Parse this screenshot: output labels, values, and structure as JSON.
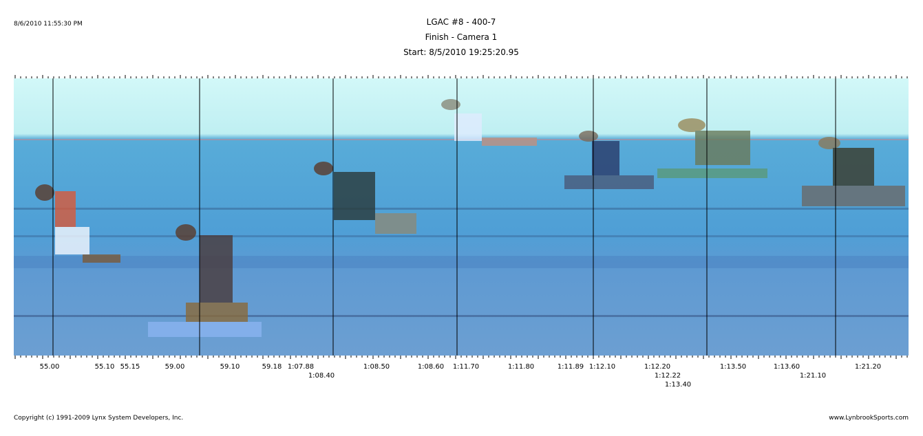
{
  "header": {
    "timestamp": "8/6/2010 11:55:30 PM",
    "title": "LGAC #8 - 400-7",
    "subtitle": "Finish - Camera 1",
    "start": "Start: 8/5/2010 19:25:20.95"
  },
  "time_labels": [
    "55.00",
    "55.10",
    "55.15",
    "59.00",
    "59.10",
    "59.18",
    "1:07.88",
    "1:08.40",
    "1:08.50",
    "1:08.60",
    "1:11.70",
    "1:11.80",
    "1:11.89",
    "1:12.10",
    "1:12.20",
    "1:12.22",
    "1:13.40",
    "1:13.50",
    "1:13.60",
    "1:21.10",
    "1:21.20"
  ],
  "footer": {
    "copyright": "Copyright (c) 1991-2009 Lynx System Developers, Inc.",
    "website": "www.LynbrookSports.com"
  }
}
